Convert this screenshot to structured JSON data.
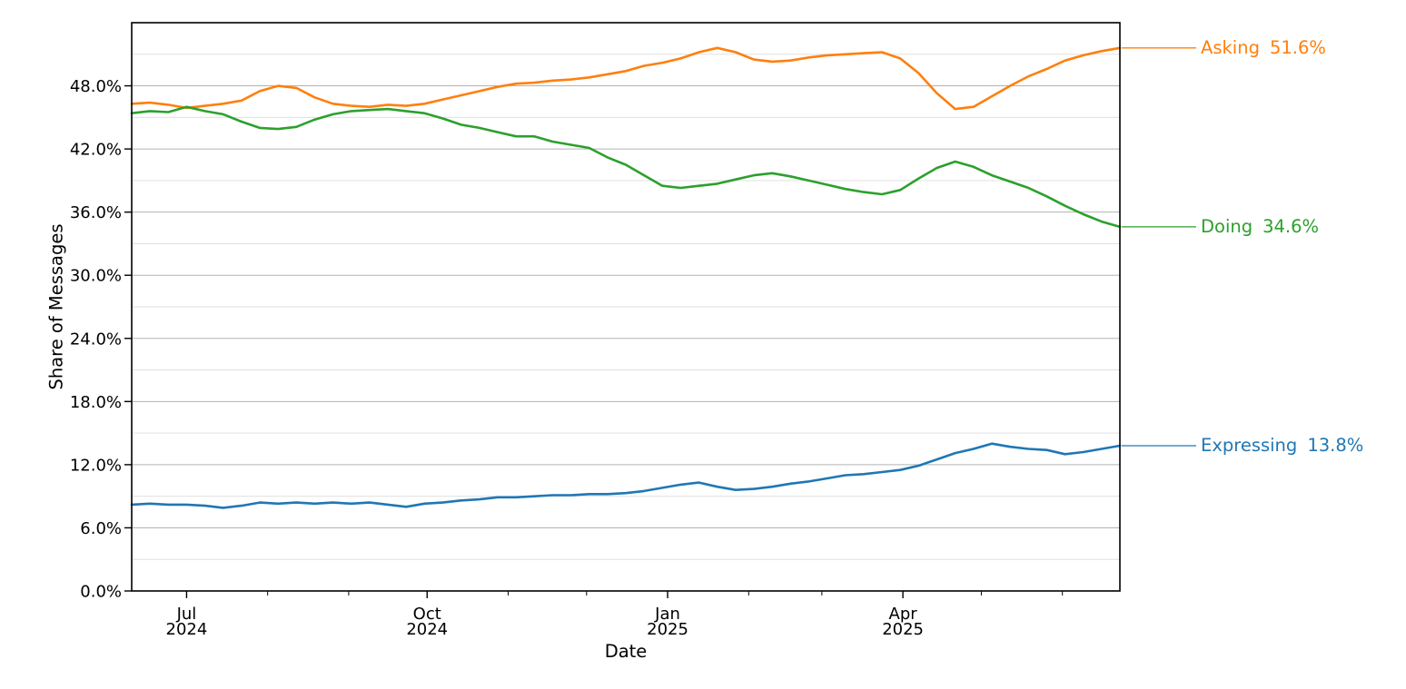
{
  "chart_data": {
    "type": "line",
    "title": "",
    "xlabel": "Date",
    "ylabel": "Share of Messages",
    "ylim": [
      0,
      54
    ],
    "grid": "horizontal only; major lines every 6%, minor lines every 3%",
    "legend_position": "right-edge end-of-line labels with leader lines",
    "y_major_ticks": [
      0,
      6,
      12,
      18,
      24,
      30,
      36,
      42,
      48
    ],
    "y_tick_labels": [
      "0.0%",
      "6.0%",
      "12.0%",
      "18.0%",
      "24.0%",
      "30.0%",
      "36.0%",
      "42.0%",
      "48.0%"
    ],
    "y_minor_ticks": [
      3,
      9,
      15,
      21,
      27,
      33,
      39,
      45,
      51
    ],
    "x_range": [
      "2024-06-10",
      "2025-06-23"
    ],
    "x_major_ticks": [
      {
        "date": "2024-07-01",
        "line1": "Jul",
        "line2": "2024"
      },
      {
        "date": "2024-10-01",
        "line1": "Oct",
        "line2": "2024"
      },
      {
        "date": "2025-01-01",
        "line1": "Jan",
        "line2": "2025"
      },
      {
        "date": "2025-04-01",
        "line1": "Apr",
        "line2": "2025"
      }
    ],
    "x_minor_ticks": [
      "2024-08-01",
      "2024-09-01",
      "2024-11-01",
      "2024-12-01",
      "2025-02-01",
      "2025-03-01",
      "2025-05-01",
      "2025-06-01"
    ],
    "dates": [
      "2024-06-10",
      "2024-06-17",
      "2024-06-24",
      "2024-07-01",
      "2024-07-08",
      "2024-07-15",
      "2024-07-22",
      "2024-07-29",
      "2024-08-05",
      "2024-08-12",
      "2024-08-19",
      "2024-08-26",
      "2024-09-02",
      "2024-09-09",
      "2024-09-16",
      "2024-09-23",
      "2024-09-30",
      "2024-10-07",
      "2024-10-14",
      "2024-10-21",
      "2024-10-28",
      "2024-11-04",
      "2024-11-11",
      "2024-11-18",
      "2024-11-25",
      "2024-12-02",
      "2024-12-09",
      "2024-12-16",
      "2024-12-23",
      "2024-12-30",
      "2025-01-06",
      "2025-01-13",
      "2025-01-20",
      "2025-01-27",
      "2025-02-03",
      "2025-02-10",
      "2025-02-17",
      "2025-02-24",
      "2025-03-03",
      "2025-03-10",
      "2025-03-17",
      "2025-03-24",
      "2025-03-31",
      "2025-04-07",
      "2025-04-14",
      "2025-04-21",
      "2025-04-28",
      "2025-05-05",
      "2025-05-12",
      "2025-05-19",
      "2025-05-26",
      "2025-06-02",
      "2025-06-09",
      "2025-06-16",
      "2025-06-23"
    ],
    "series": [
      {
        "name": "Asking",
        "color": "#ff7f0e",
        "end_label": "Asking",
        "end_value": "51.6%",
        "values": [
          46.3,
          46.4,
          46.2,
          45.9,
          46.1,
          46.3,
          46.6,
          47.5,
          48.0,
          47.8,
          46.9,
          46.3,
          46.1,
          46.0,
          46.2,
          46.1,
          46.3,
          46.7,
          47.1,
          47.5,
          47.9,
          48.2,
          48.3,
          48.5,
          48.6,
          48.8,
          49.1,
          49.4,
          49.9,
          50.2,
          50.6,
          51.2,
          51.6,
          51.2,
          50.5,
          50.3,
          50.4,
          50.7,
          50.9,
          51.0,
          51.1,
          51.2,
          50.6,
          49.2,
          47.3,
          45.8,
          46.0,
          47.0,
          48.0,
          48.9,
          49.6,
          50.4,
          50.9,
          51.3,
          51.6
        ]
      },
      {
        "name": "Doing",
        "color": "#2ca02c",
        "end_label": "Doing",
        "end_value": "34.6%",
        "values": [
          45.4,
          45.6,
          45.5,
          46.0,
          45.6,
          45.3,
          44.6,
          44.0,
          43.9,
          44.1,
          44.8,
          45.3,
          45.6,
          45.7,
          45.8,
          45.6,
          45.4,
          44.9,
          44.3,
          44.0,
          43.6,
          43.2,
          43.2,
          42.7,
          42.4,
          42.1,
          41.2,
          40.5,
          39.5,
          38.5,
          38.3,
          38.5,
          38.7,
          39.1,
          39.5,
          39.7,
          39.4,
          39.0,
          38.6,
          38.2,
          37.9,
          37.7,
          38.1,
          39.2,
          40.2,
          40.8,
          40.3,
          39.5,
          38.9,
          38.3,
          37.5,
          36.6,
          35.8,
          35.1,
          34.6
        ]
      },
      {
        "name": "Expressing",
        "color": "#1f77b4",
        "end_label": "Expressing",
        "end_value": "13.8%",
        "values": [
          8.2,
          8.3,
          8.2,
          8.2,
          8.1,
          7.9,
          8.1,
          8.4,
          8.3,
          8.4,
          8.3,
          8.4,
          8.3,
          8.4,
          8.2,
          8.0,
          8.3,
          8.4,
          8.6,
          8.7,
          8.9,
          8.9,
          9.0,
          9.1,
          9.1,
          9.2,
          9.2,
          9.3,
          9.5,
          9.8,
          10.1,
          10.3,
          9.9,
          9.6,
          9.7,
          9.9,
          10.2,
          10.4,
          10.7,
          11.0,
          11.1,
          11.3,
          11.5,
          11.9,
          12.5,
          13.1,
          13.5,
          14.0,
          13.7,
          13.5,
          13.4,
          13.0,
          13.2,
          13.5,
          13.8
        ]
      }
    ],
    "style": {
      "grid_major_color": "#b3b3b3",
      "grid_minor_color": "#dcdcdc",
      "border_color": "#000000",
      "tick_label_color": "#000000"
    }
  }
}
